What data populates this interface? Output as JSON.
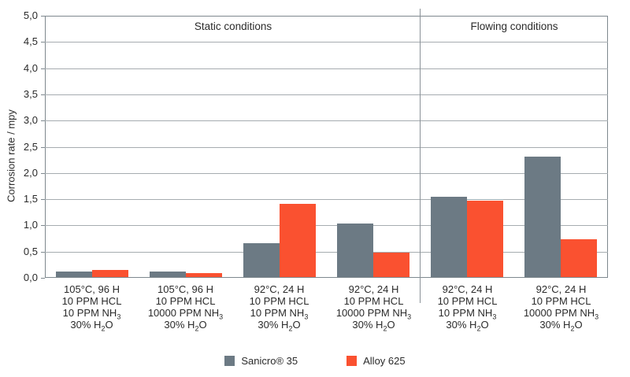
{
  "chart_data": {
    "type": "bar",
    "title": "",
    "xlabel": "",
    "ylabel": "Corrosion rate / mpy",
    "ylim": [
      0,
      5
    ],
    "ytick_step": 0.5,
    "yticks": [
      "0,0",
      "0,5",
      "1,0",
      "1,5",
      "2,0",
      "2,5",
      "3,0",
      "3,5",
      "4,0",
      "4,5",
      "5,0"
    ],
    "decimal_separator": ",",
    "grid": "horizontal",
    "legend_position": "bottom-center",
    "sections": [
      {
        "label": "Static conditions",
        "group_count": 4
      },
      {
        "label": "Flowing conditions",
        "group_count": 2
      }
    ],
    "categories": [
      [
        [
          {
            "t": "105°C, 96 H"
          }
        ],
        [
          {
            "t": "10 PPM HCL"
          }
        ],
        [
          {
            "t": "10 PPM NH"
          },
          {
            "s": "3"
          }
        ],
        [
          {
            "t": "30% H"
          },
          {
            "s": "2"
          },
          {
            "t": "O"
          }
        ]
      ],
      [
        [
          {
            "t": "105°C, 96 H"
          }
        ],
        [
          {
            "t": "10 PPM HCL"
          }
        ],
        [
          {
            "t": "10000 PPM NH"
          },
          {
            "s": "3"
          }
        ],
        [
          {
            "t": "30% H"
          },
          {
            "s": "2"
          },
          {
            "t": "O"
          }
        ]
      ],
      [
        [
          {
            "t": "92°C, 24 H"
          }
        ],
        [
          {
            "t": "10 PPM HCL"
          }
        ],
        [
          {
            "t": "10 PPM NH"
          },
          {
            "s": "3"
          }
        ],
        [
          {
            "t": "30% H"
          },
          {
            "s": "2"
          },
          {
            "t": "O"
          }
        ]
      ],
      [
        [
          {
            "t": "92°C, 24 H"
          }
        ],
        [
          {
            "t": "10 PPM HCL"
          }
        ],
        [
          {
            "t": "10000 PPM NH"
          },
          {
            "s": "3"
          }
        ],
        [
          {
            "t": "30% H"
          },
          {
            "s": "2"
          },
          {
            "t": "O"
          }
        ]
      ],
      [
        [
          {
            "t": "92°C, 24 H"
          }
        ],
        [
          {
            "t": "10 PPM HCL"
          }
        ],
        [
          {
            "t": "10 PPM NH"
          },
          {
            "s": "3"
          }
        ],
        [
          {
            "t": "30% H"
          },
          {
            "s": "2"
          },
          {
            "t": "O"
          }
        ]
      ],
      [
        [
          {
            "t": "92°C, 24 H"
          }
        ],
        [
          {
            "t": "10 PPM HCL"
          }
        ],
        [
          {
            "t": "10000 PPM NH"
          },
          {
            "s": "3"
          }
        ],
        [
          {
            "t": "30% H"
          },
          {
            "s": "2"
          },
          {
            "t": "O"
          }
        ]
      ]
    ],
    "series": [
      {
        "name": "Sanicro® 35",
        "color": "#6C7A84",
        "values": [
          0.1,
          0.1,
          0.65,
          1.02,
          1.53,
          2.3
        ]
      },
      {
        "name": "Alloy 625",
        "color": "#FA5130",
        "values": [
          0.14,
          0.07,
          1.4,
          0.46,
          1.46,
          0.72
        ]
      }
    ]
  },
  "colors": {
    "grid": "#a6acb0",
    "border": "#7e888e",
    "divider": "#8a9298",
    "text": "#2b2b2b"
  }
}
